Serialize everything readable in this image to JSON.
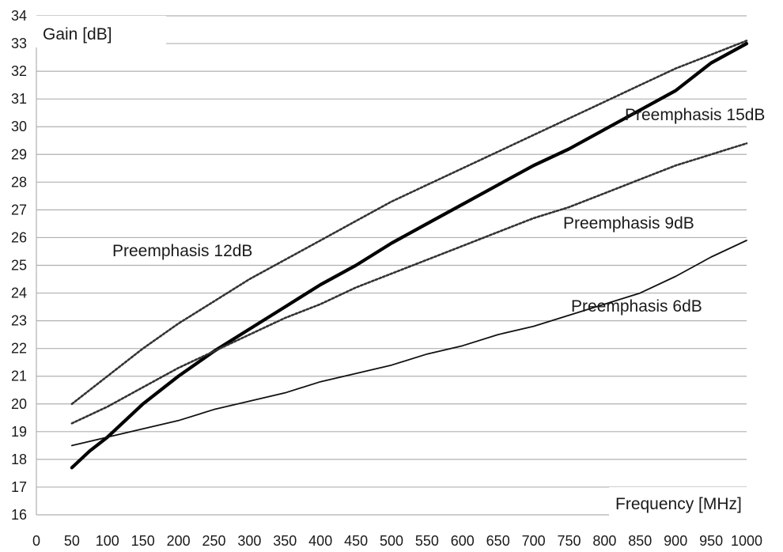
{
  "chart_data": {
    "type": "line",
    "ylabel": "Gain [dB]",
    "xlabel": "Frequency [MHz]",
    "ylim": [
      16,
      34
    ],
    "y_ticks": [
      16,
      17,
      18,
      19,
      20,
      21,
      22,
      23,
      24,
      25,
      26,
      27,
      28,
      29,
      30,
      31,
      32,
      33,
      34
    ],
    "x_ticks": [
      "0",
      "50",
      "100",
      "150",
      "200",
      "250",
      "300",
      "350",
      "400",
      "450",
      "500",
      "550",
      "600",
      "650",
      "700",
      "750",
      "800",
      "850",
      "900",
      "950",
      "1000"
    ],
    "grid": "horizontal",
    "series": [
      {
        "name": "Preemphasis 15dB",
        "style": "thick-solid",
        "color": "#000000",
        "x": [
          50,
          75,
          100,
          150,
          200,
          250,
          300,
          350,
          400,
          450,
          500,
          550,
          600,
          650,
          700,
          750,
          800,
          850,
          900,
          950,
          1000
        ],
        "values": [
          17.7,
          18.3,
          18.8,
          20.0,
          21.0,
          21.9,
          22.7,
          23.5,
          24.3,
          25.0,
          25.8,
          26.5,
          27.2,
          27.9,
          28.6,
          29.2,
          29.9,
          30.6,
          31.3,
          32.3,
          33.0
        ]
      },
      {
        "name": "Preemphasis 12dB",
        "style": "dotted",
        "color": "#333333",
        "x": [
          50,
          100,
          150,
          200,
          250,
          300,
          350,
          400,
          450,
          500,
          550,
          600,
          650,
          700,
          750,
          800,
          850,
          900,
          950,
          1000
        ],
        "values": [
          20.0,
          21.0,
          22.0,
          22.9,
          23.7,
          24.5,
          25.2,
          25.9,
          26.6,
          27.3,
          27.9,
          28.5,
          29.1,
          29.7,
          30.3,
          30.9,
          31.5,
          32.1,
          32.6,
          33.1
        ]
      },
      {
        "name": "Preemphasis 9dB",
        "style": "dotted",
        "color": "#333333",
        "x": [
          50,
          100,
          150,
          200,
          250,
          300,
          350,
          400,
          450,
          500,
          550,
          600,
          650,
          700,
          750,
          800,
          850,
          900,
          950,
          1000
        ],
        "values": [
          19.3,
          19.9,
          20.6,
          21.3,
          21.9,
          22.5,
          23.1,
          23.6,
          24.2,
          24.7,
          25.2,
          25.7,
          26.2,
          26.7,
          27.1,
          27.6,
          28.1,
          28.6,
          29.0,
          29.4
        ]
      },
      {
        "name": "Preemphasis 6dB",
        "style": "thin-solid",
        "color": "#111111",
        "x": [
          50,
          100,
          150,
          200,
          250,
          300,
          350,
          400,
          450,
          500,
          550,
          600,
          650,
          700,
          750,
          800,
          850,
          900,
          950,
          1000
        ],
        "values": [
          18.5,
          18.8,
          19.1,
          19.4,
          19.8,
          20.1,
          20.4,
          20.8,
          21.1,
          21.4,
          21.8,
          22.1,
          22.5,
          22.8,
          23.2,
          23.6,
          24.0,
          24.6,
          25.3,
          25.9
        ]
      }
    ],
    "annotations": [
      {
        "text": "Preemphasis 15dB",
        "series": "Preemphasis 15dB"
      },
      {
        "text": "Preemphasis 12dB",
        "series": "Preemphasis 12dB"
      },
      {
        "text": "Preemphasis  9dB",
        "series": "Preemphasis 9dB"
      },
      {
        "text": "Preemphasis 6dB",
        "series": "Preemphasis 6dB"
      }
    ]
  }
}
